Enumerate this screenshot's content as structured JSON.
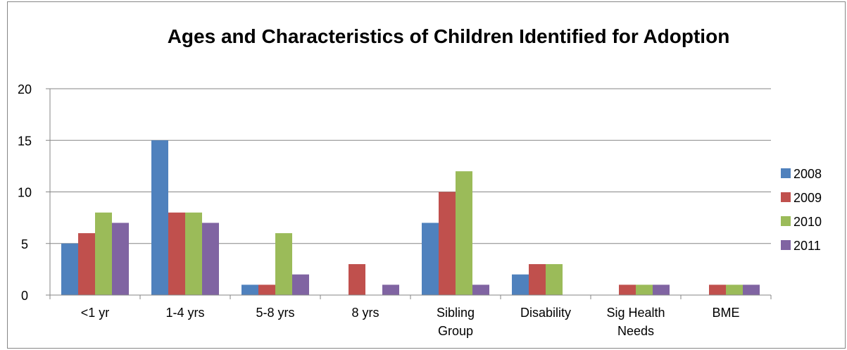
{
  "chart_data": {
    "type": "bar",
    "title": "Ages and Characteristics of Children Identified for Adoption",
    "categories": [
      [
        "<1 yr"
      ],
      [
        "1-4 yrs"
      ],
      [
        "5-8 yrs"
      ],
      [
        "8 yrs"
      ],
      [
        "Sibling",
        "Group"
      ],
      [
        "Disability"
      ],
      [
        "Sig Health",
        "Needs"
      ],
      [
        "BME"
      ]
    ],
    "series": [
      {
        "name": "2008",
        "color": "#4F81BD",
        "values": [
          5,
          15,
          1,
          0,
          7,
          2,
          0,
          0
        ]
      },
      {
        "name": "2009",
        "color": "#C0504D",
        "values": [
          6,
          8,
          1,
          3,
          10,
          3,
          1,
          1
        ]
      },
      {
        "name": "2010",
        "color": "#9BBB59",
        "values": [
          8,
          8,
          6,
          0,
          12,
          3,
          1,
          1
        ]
      },
      {
        "name": "2011",
        "color": "#8064A2",
        "values": [
          7,
          7,
          2,
          1,
          1,
          0,
          1,
          1
        ]
      }
    ],
    "ylim": [
      0,
      20
    ],
    "yticks": [
      0,
      5,
      10,
      15,
      20
    ],
    "grid": true,
    "legend": "right"
  }
}
